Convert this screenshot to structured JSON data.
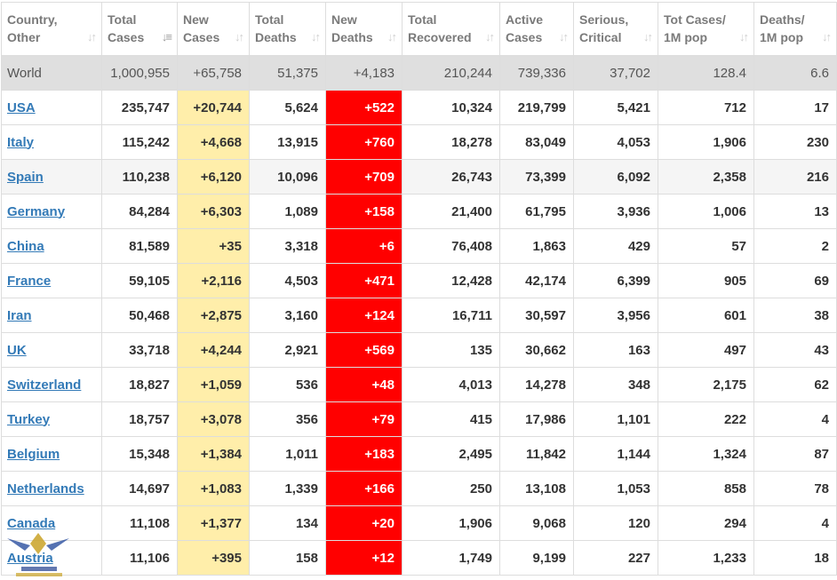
{
  "columns": [
    {
      "key": "country",
      "label": [
        "Country,",
        "Other"
      ],
      "sort": "inactive"
    },
    {
      "key": "total_cases",
      "label": [
        "Total",
        "Cases"
      ],
      "sort": "active"
    },
    {
      "key": "new_cases",
      "label": [
        "New",
        "Cases"
      ],
      "sort": "inactive"
    },
    {
      "key": "total_deaths",
      "label": [
        "Total",
        "Deaths"
      ],
      "sort": "inactive"
    },
    {
      "key": "new_deaths",
      "label": [
        "New",
        "Deaths"
      ],
      "sort": "inactive"
    },
    {
      "key": "total_recovered",
      "label": [
        "Total",
        "Recovered"
      ],
      "sort": "inactive"
    },
    {
      "key": "active_cases",
      "label": [
        "Active",
        "Cases"
      ],
      "sort": "inactive"
    },
    {
      "key": "serious",
      "label": [
        "Serious,",
        "Critical"
      ],
      "sort": "inactive"
    },
    {
      "key": "cases_per_1m",
      "label": [
        "Tot Cases/",
        "1M pop"
      ],
      "sort": "inactive"
    },
    {
      "key": "deaths_per_1m",
      "label": [
        "Deaths/",
        "1M pop"
      ],
      "sort": "inactive"
    }
  ],
  "world": [
    "World",
    "1,000,955",
    "+65,758",
    "51,375",
    "+4,183",
    "210,244",
    "739,336",
    "37,702",
    "128.4",
    "6.6"
  ],
  "rows": [
    [
      "USA",
      "235,747",
      "+20,744",
      "5,624",
      "+522",
      "10,324",
      "219,799",
      "5,421",
      "712",
      "17"
    ],
    [
      "Italy",
      "115,242",
      "+4,668",
      "13,915",
      "+760",
      "18,278",
      "83,049",
      "4,053",
      "1,906",
      "230"
    ],
    [
      "Spain",
      "110,238",
      "+6,120",
      "10,096",
      "+709",
      "26,743",
      "73,399",
      "6,092",
      "2,358",
      "216"
    ],
    [
      "Germany",
      "84,284",
      "+6,303",
      "1,089",
      "+158",
      "21,400",
      "61,795",
      "3,936",
      "1,006",
      "13"
    ],
    [
      "China",
      "81,589",
      "+35",
      "3,318",
      "+6",
      "76,408",
      "1,863",
      "429",
      "57",
      "2"
    ],
    [
      "France",
      "59,105",
      "+2,116",
      "4,503",
      "+471",
      "12,428",
      "42,174",
      "6,399",
      "905",
      "69"
    ],
    [
      "Iran",
      "50,468",
      "+2,875",
      "3,160",
      "+124",
      "16,711",
      "30,597",
      "3,956",
      "601",
      "38"
    ],
    [
      "UK",
      "33,718",
      "+4,244",
      "2,921",
      "+569",
      "135",
      "30,662",
      "163",
      "497",
      "43"
    ],
    [
      "Switzerland",
      "18,827",
      "+1,059",
      "536",
      "+48",
      "4,013",
      "14,278",
      "348",
      "2,175",
      "62"
    ],
    [
      "Turkey",
      "18,757",
      "+3,078",
      "356",
      "+79",
      "415",
      "17,986",
      "1,101",
      "222",
      "4"
    ],
    [
      "Belgium",
      "15,348",
      "+1,384",
      "1,011",
      "+183",
      "2,495",
      "11,842",
      "1,144",
      "1,324",
      "87"
    ],
    [
      "Netherlands",
      "14,697",
      "+1,083",
      "1,339",
      "+166",
      "250",
      "13,108",
      "1,053",
      "858",
      "78"
    ],
    [
      "Canada",
      "11,108",
      "+1,377",
      "134",
      "+20",
      "1,906",
      "9,068",
      "120",
      "294",
      "4"
    ],
    [
      "Austria",
      "11,106",
      "+395",
      "158",
      "+12",
      "1,749",
      "9,199",
      "227",
      "1,233",
      "18"
    ]
  ],
  "shaded_rows": [
    2
  ],
  "colors": {
    "new_cases_bg": "#ffeeaa",
    "new_deaths_bg": "#ff0000",
    "link": "#337ab7",
    "world_bg": "#dfdfdf"
  },
  "icons": {
    "sort_inactive": "sort-arrows-icon",
    "sort_active": "sort-descending-icon"
  }
}
